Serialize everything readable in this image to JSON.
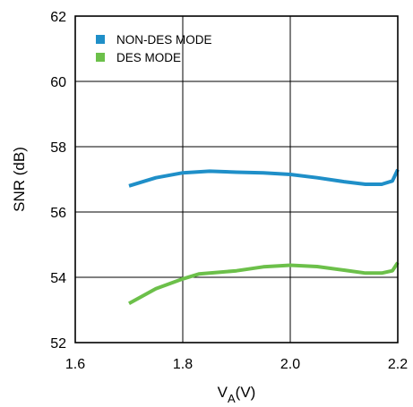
{
  "chart_data": {
    "type": "line",
    "xlabel": {
      "main": "V",
      "sub": "A",
      "suffix": "(V)"
    },
    "ylabel": "SNR (dB)",
    "xlim": [
      1.6,
      2.2
    ],
    "ylim": [
      52,
      62
    ],
    "x_ticks": [
      "1.6",
      "1.8",
      "2.0",
      "2.2"
    ],
    "x_tick_values": [
      1.6,
      1.8,
      2.0,
      2.2
    ],
    "y_ticks": [
      "52",
      "54",
      "56",
      "58",
      "60",
      "62"
    ],
    "y_tick_values": [
      52,
      54,
      56,
      58,
      60,
      62
    ],
    "grid": true,
    "legend_position": "top-left",
    "series": [
      {
        "name": "NON-DES MODE",
        "color": "#1f8fc8",
        "x": [
          1.7,
          1.75,
          1.8,
          1.85,
          1.9,
          1.95,
          2.0,
          2.05,
          2.1,
          2.14,
          2.17,
          2.19,
          2.2
        ],
        "y": [
          56.8,
          57.05,
          57.2,
          57.25,
          57.22,
          57.2,
          57.15,
          57.05,
          56.93,
          56.85,
          56.85,
          56.95,
          57.3
        ]
      },
      {
        "name": "DES MODE",
        "color": "#6cc04a",
        "x": [
          1.7,
          1.75,
          1.8,
          1.83,
          1.9,
          1.95,
          2.0,
          2.05,
          2.1,
          2.14,
          2.17,
          2.19,
          2.2
        ],
        "y": [
          53.2,
          53.65,
          53.95,
          54.1,
          54.2,
          54.32,
          54.37,
          54.33,
          54.22,
          54.13,
          54.13,
          54.2,
          54.45
        ]
      }
    ]
  }
}
